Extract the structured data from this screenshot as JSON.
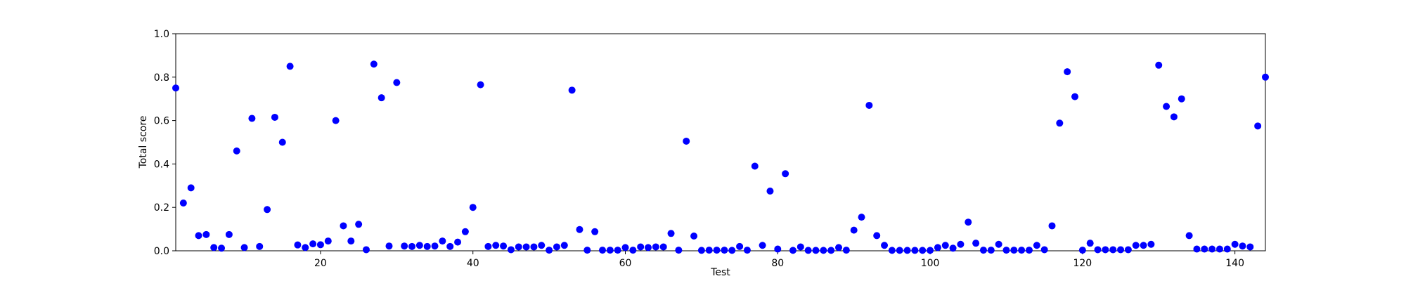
{
  "chart_data": {
    "type": "scatter",
    "x_label": "Test",
    "y_label": "Total score",
    "x": [
      1,
      2,
      3,
      4,
      5,
      6,
      7,
      8,
      9,
      10,
      11,
      12,
      13,
      14,
      15,
      16,
      17,
      18,
      19,
      20,
      21,
      22,
      23,
      24,
      25,
      26,
      27,
      28,
      29,
      30,
      31,
      32,
      33,
      34,
      35,
      36,
      37,
      38,
      39,
      40,
      41,
      42,
      43,
      44,
      45,
      46,
      47,
      48,
      49,
      50,
      51,
      52,
      53,
      54,
      55,
      56,
      57,
      58,
      59,
      60,
      61,
      62,
      63,
      64,
      65,
      66,
      67,
      68,
      69,
      70,
      71,
      72,
      73,
      74,
      75,
      76,
      77,
      78,
      79,
      80,
      81,
      82,
      83,
      84,
      85,
      86,
      87,
      88,
      89,
      90,
      91,
      92,
      93,
      94,
      95,
      96,
      97,
      98,
      99,
      100,
      101,
      102,
      103,
      104,
      105,
      106,
      107,
      108,
      109,
      110,
      111,
      112,
      113,
      114,
      115,
      116,
      117,
      118,
      119,
      120,
      121,
      122,
      123,
      124,
      125,
      126,
      127,
      128,
      129,
      130,
      131,
      132,
      133,
      134,
      135,
      136,
      137,
      138,
      139,
      140,
      141,
      142,
      143,
      144
    ],
    "series": [
      {
        "color": "#0000ff",
        "values": [
          0.75,
          0.22,
          0.29,
          0.07,
          0.075,
          0.015,
          0.012,
          0.075,
          0.46,
          0.015,
          0.61,
          0.02,
          0.19,
          0.615,
          0.5,
          0.85,
          0.027,
          0.015,
          0.032,
          0.028,
          0.045,
          0.6,
          0.115,
          0.045,
          0.122,
          0.005,
          0.86,
          0.705,
          0.022,
          0.775,
          0.022,
          0.02,
          0.025,
          0.02,
          0.022,
          0.045,
          0.02,
          0.04,
          0.088,
          0.2,
          0.765,
          0.02,
          0.025,
          0.022,
          0.005,
          0.018,
          0.018,
          0.018,
          0.025,
          0.003,
          0.018,
          0.025,
          0.74,
          0.098,
          0.003,
          0.088,
          0.003,
          0.003,
          0.003,
          0.015,
          0.003,
          0.018,
          0.015,
          0.018,
          0.018,
          0.08,
          0.003,
          0.505,
          0.068,
          0.002,
          0.003,
          0.003,
          0.003,
          0.002,
          0.02,
          0.003,
          0.39,
          0.025,
          0.275,
          0.008,
          0.355,
          0.002,
          0.018,
          0.002,
          0.002,
          0.002,
          0.002,
          0.015,
          0.003,
          0.095,
          0.155,
          0.67,
          0.07,
          0.025,
          0.002,
          0.002,
          0.002,
          0.002,
          0.002,
          0.002,
          0.015,
          0.025,
          0.012,
          0.03,
          0.132,
          0.035,
          0.003,
          0.003,
          0.03,
          0.003,
          0.003,
          0.003,
          0.003,
          0.025,
          0.005,
          0.115,
          0.588,
          0.825,
          0.71,
          0.003,
          0.035,
          0.005,
          0.005,
          0.005,
          0.005,
          0.005,
          0.025,
          0.025,
          0.03,
          0.855,
          0.665,
          0.617,
          0.7,
          0.07,
          0.008,
          0.008,
          0.008,
          0.008,
          0.008,
          0.03,
          0.022,
          0.018,
          0.575,
          0.8
        ]
      }
    ],
    "xlim": [
      1,
      144
    ],
    "ylim": [
      0,
      1
    ],
    "xticks": [
      20,
      40,
      60,
      80,
      100,
      120,
      140
    ],
    "yticks": [
      {
        "value": 0,
        "label": "0.0"
      },
      {
        "value": 0.2,
        "label": "0.2"
      },
      {
        "value": 0.4,
        "label": "0.4"
      },
      {
        "value": 0.6,
        "label": "0.6"
      },
      {
        "value": 0.8,
        "label": "0.8"
      },
      {
        "value": 1,
        "label": "1.0"
      }
    ],
    "grid": false
  }
}
